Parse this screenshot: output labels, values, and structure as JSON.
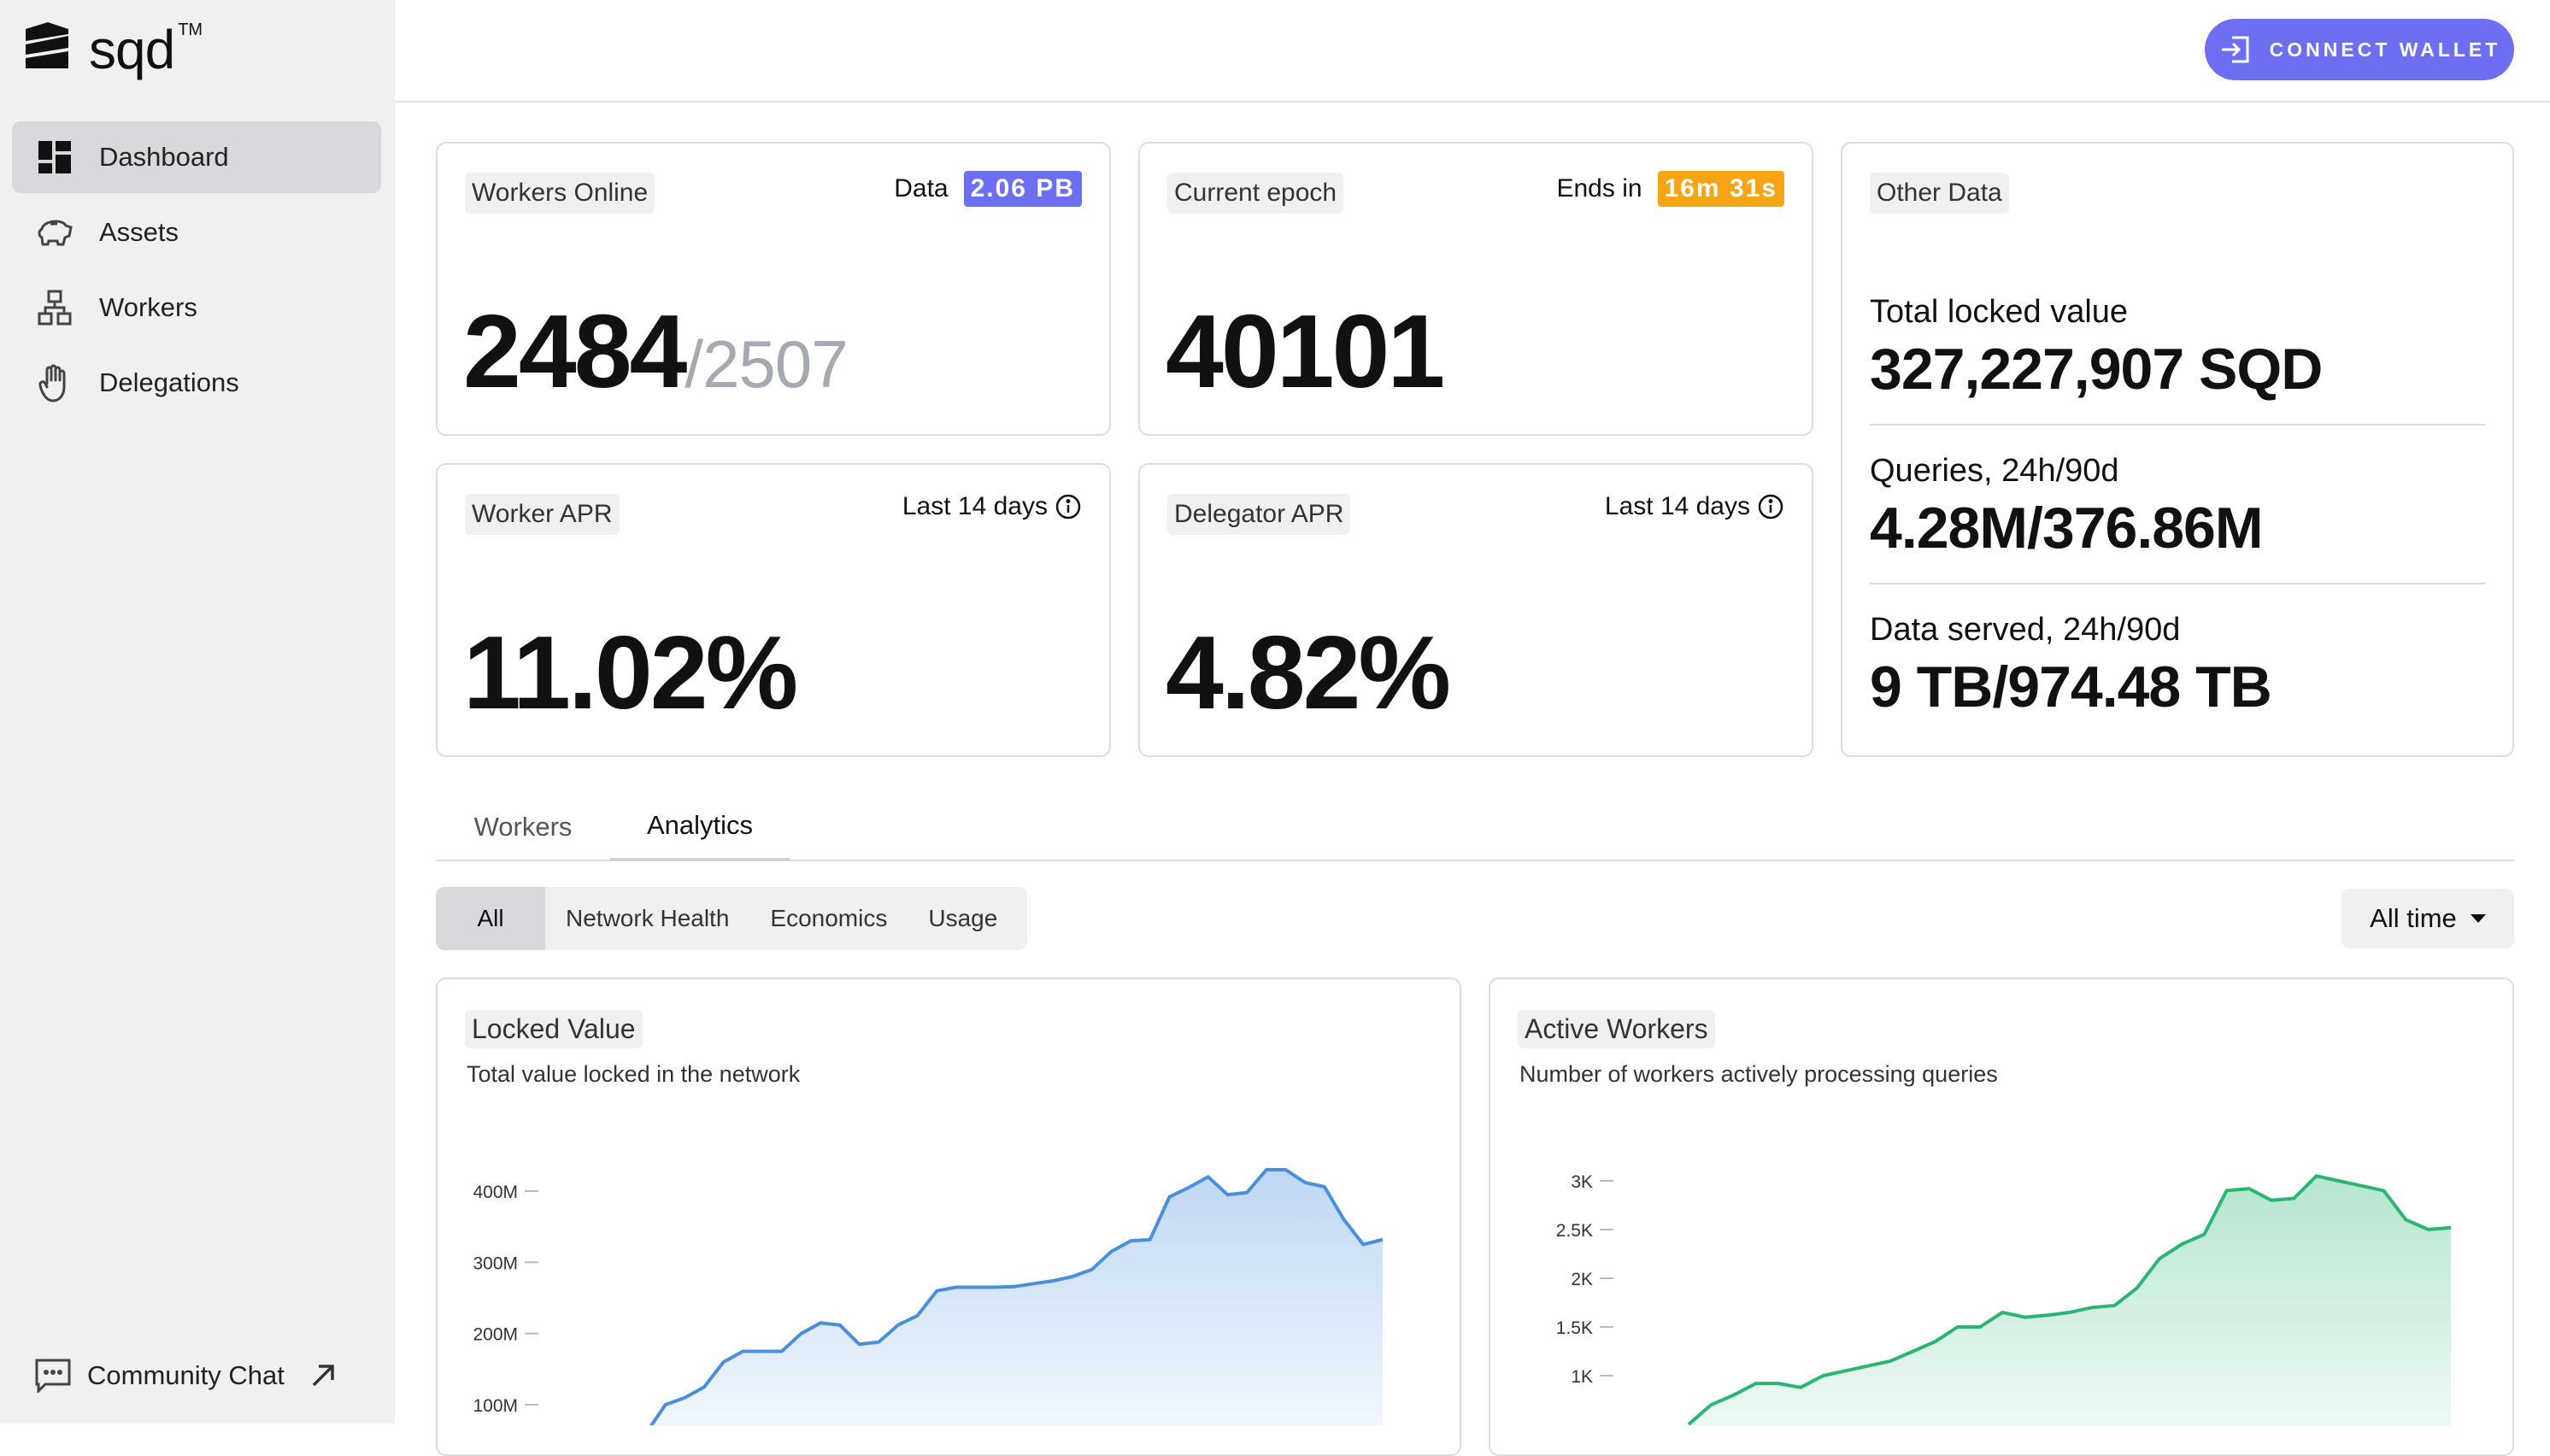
{
  "brand": {
    "name": "sqd",
    "tm": "TM"
  },
  "sidebar": {
    "items": [
      {
        "label": "Dashboard",
        "icon": "dashboard-icon",
        "active": true
      },
      {
        "label": "Assets",
        "icon": "piggy-bank-icon"
      },
      {
        "label": "Workers",
        "icon": "workers-network-icon"
      },
      {
        "label": "Delegations",
        "icon": "hand-icon"
      }
    ],
    "community": {
      "label": "Community Chat",
      "icon": "chat-icon",
      "external_icon": "arrow-up-right-icon"
    }
  },
  "header": {
    "connect_label": "CONNECT WALLET"
  },
  "stats": {
    "workers_online": {
      "tag": "Workers Online",
      "info_label": "Data",
      "info_value": "2.06 PB",
      "value": "2484",
      "total": "/2507"
    },
    "current_epoch": {
      "tag": "Current epoch",
      "info_label": "Ends in",
      "info_value": "16m 31s",
      "value": "40101"
    },
    "worker_apr": {
      "tag": "Worker APR",
      "info_label": "Last 14 days",
      "value": "11.02%"
    },
    "delegator_apr": {
      "tag": "Delegator APR",
      "info_label": "Last 14 days",
      "value": "4.82%"
    },
    "other": {
      "tag": "Other Data",
      "rows": [
        {
          "label": "Total locked value",
          "value": "327,227,907 SQD"
        },
        {
          "label": "Queries, 24h/90d",
          "value": "4.28M/376.86M"
        },
        {
          "label": "Data served, 24h/90d",
          "value": "9 TB/974.48 TB"
        }
      ]
    }
  },
  "tabs": [
    {
      "label": "Workers"
    },
    {
      "label": "Analytics",
      "active": true
    }
  ],
  "filters": [
    {
      "label": "All",
      "active": true
    },
    {
      "label": "Network Health"
    },
    {
      "label": "Economics"
    },
    {
      "label": "Usage"
    }
  ],
  "time_range": {
    "selected": "All time"
  },
  "charts": {
    "locked_value": {
      "title": "Locked Value",
      "subtitle": "Total value locked in the network"
    },
    "active_workers": {
      "title": "Active Workers",
      "subtitle": "Number of workers actively processing queries"
    }
  },
  "chart_data": [
    {
      "type": "area",
      "title": "Locked Value",
      "subtitle": "Total value locked in the network",
      "color": "#4a8fdc",
      "yticks": [
        "100M",
        "200M",
        "300M",
        "400M"
      ],
      "ytick_values": [
        100000000,
        200000000,
        300000000,
        400000000
      ],
      "ylim": [
        0,
        450000000
      ],
      "values": [
        60000000,
        100000000,
        110000000,
        125000000,
        160000000,
        175000000,
        175000000,
        175000000,
        200000000,
        215000000,
        212000000,
        185000000,
        188000000,
        212000000,
        225000000,
        260000000,
        265000000,
        265000000,
        265000000,
        266000000,
        270000000,
        274000000,
        280000000,
        290000000,
        315000000,
        330000000,
        332000000,
        392000000,
        405000000,
        420000000,
        395000000,
        398000000,
        430000000,
        430000000,
        412000000,
        406000000,
        360000000,
        325000000,
        332000000
      ]
    },
    {
      "type": "area",
      "title": "Active Workers",
      "subtitle": "Number of workers actively processing queries",
      "color": "#2bb573",
      "yticks": [
        "1K",
        "1.5K",
        "2K",
        "2.5K",
        "3K"
      ],
      "ytick_values": [
        1000,
        1500,
        2000,
        2500,
        3000
      ],
      "ylim": [
        400,
        3200
      ],
      "values": [
        500,
        700,
        800,
        920,
        920,
        880,
        1000,
        1050,
        1100,
        1150,
        1250,
        1350,
        1500,
        1500,
        1650,
        1600,
        1620,
        1650,
        1700,
        1720,
        1900,
        2200,
        2350,
        2450,
        2900,
        2920,
        2800,
        2820,
        3050,
        3000,
        2950,
        2900,
        2600,
        2500,
        2520
      ]
    }
  ]
}
